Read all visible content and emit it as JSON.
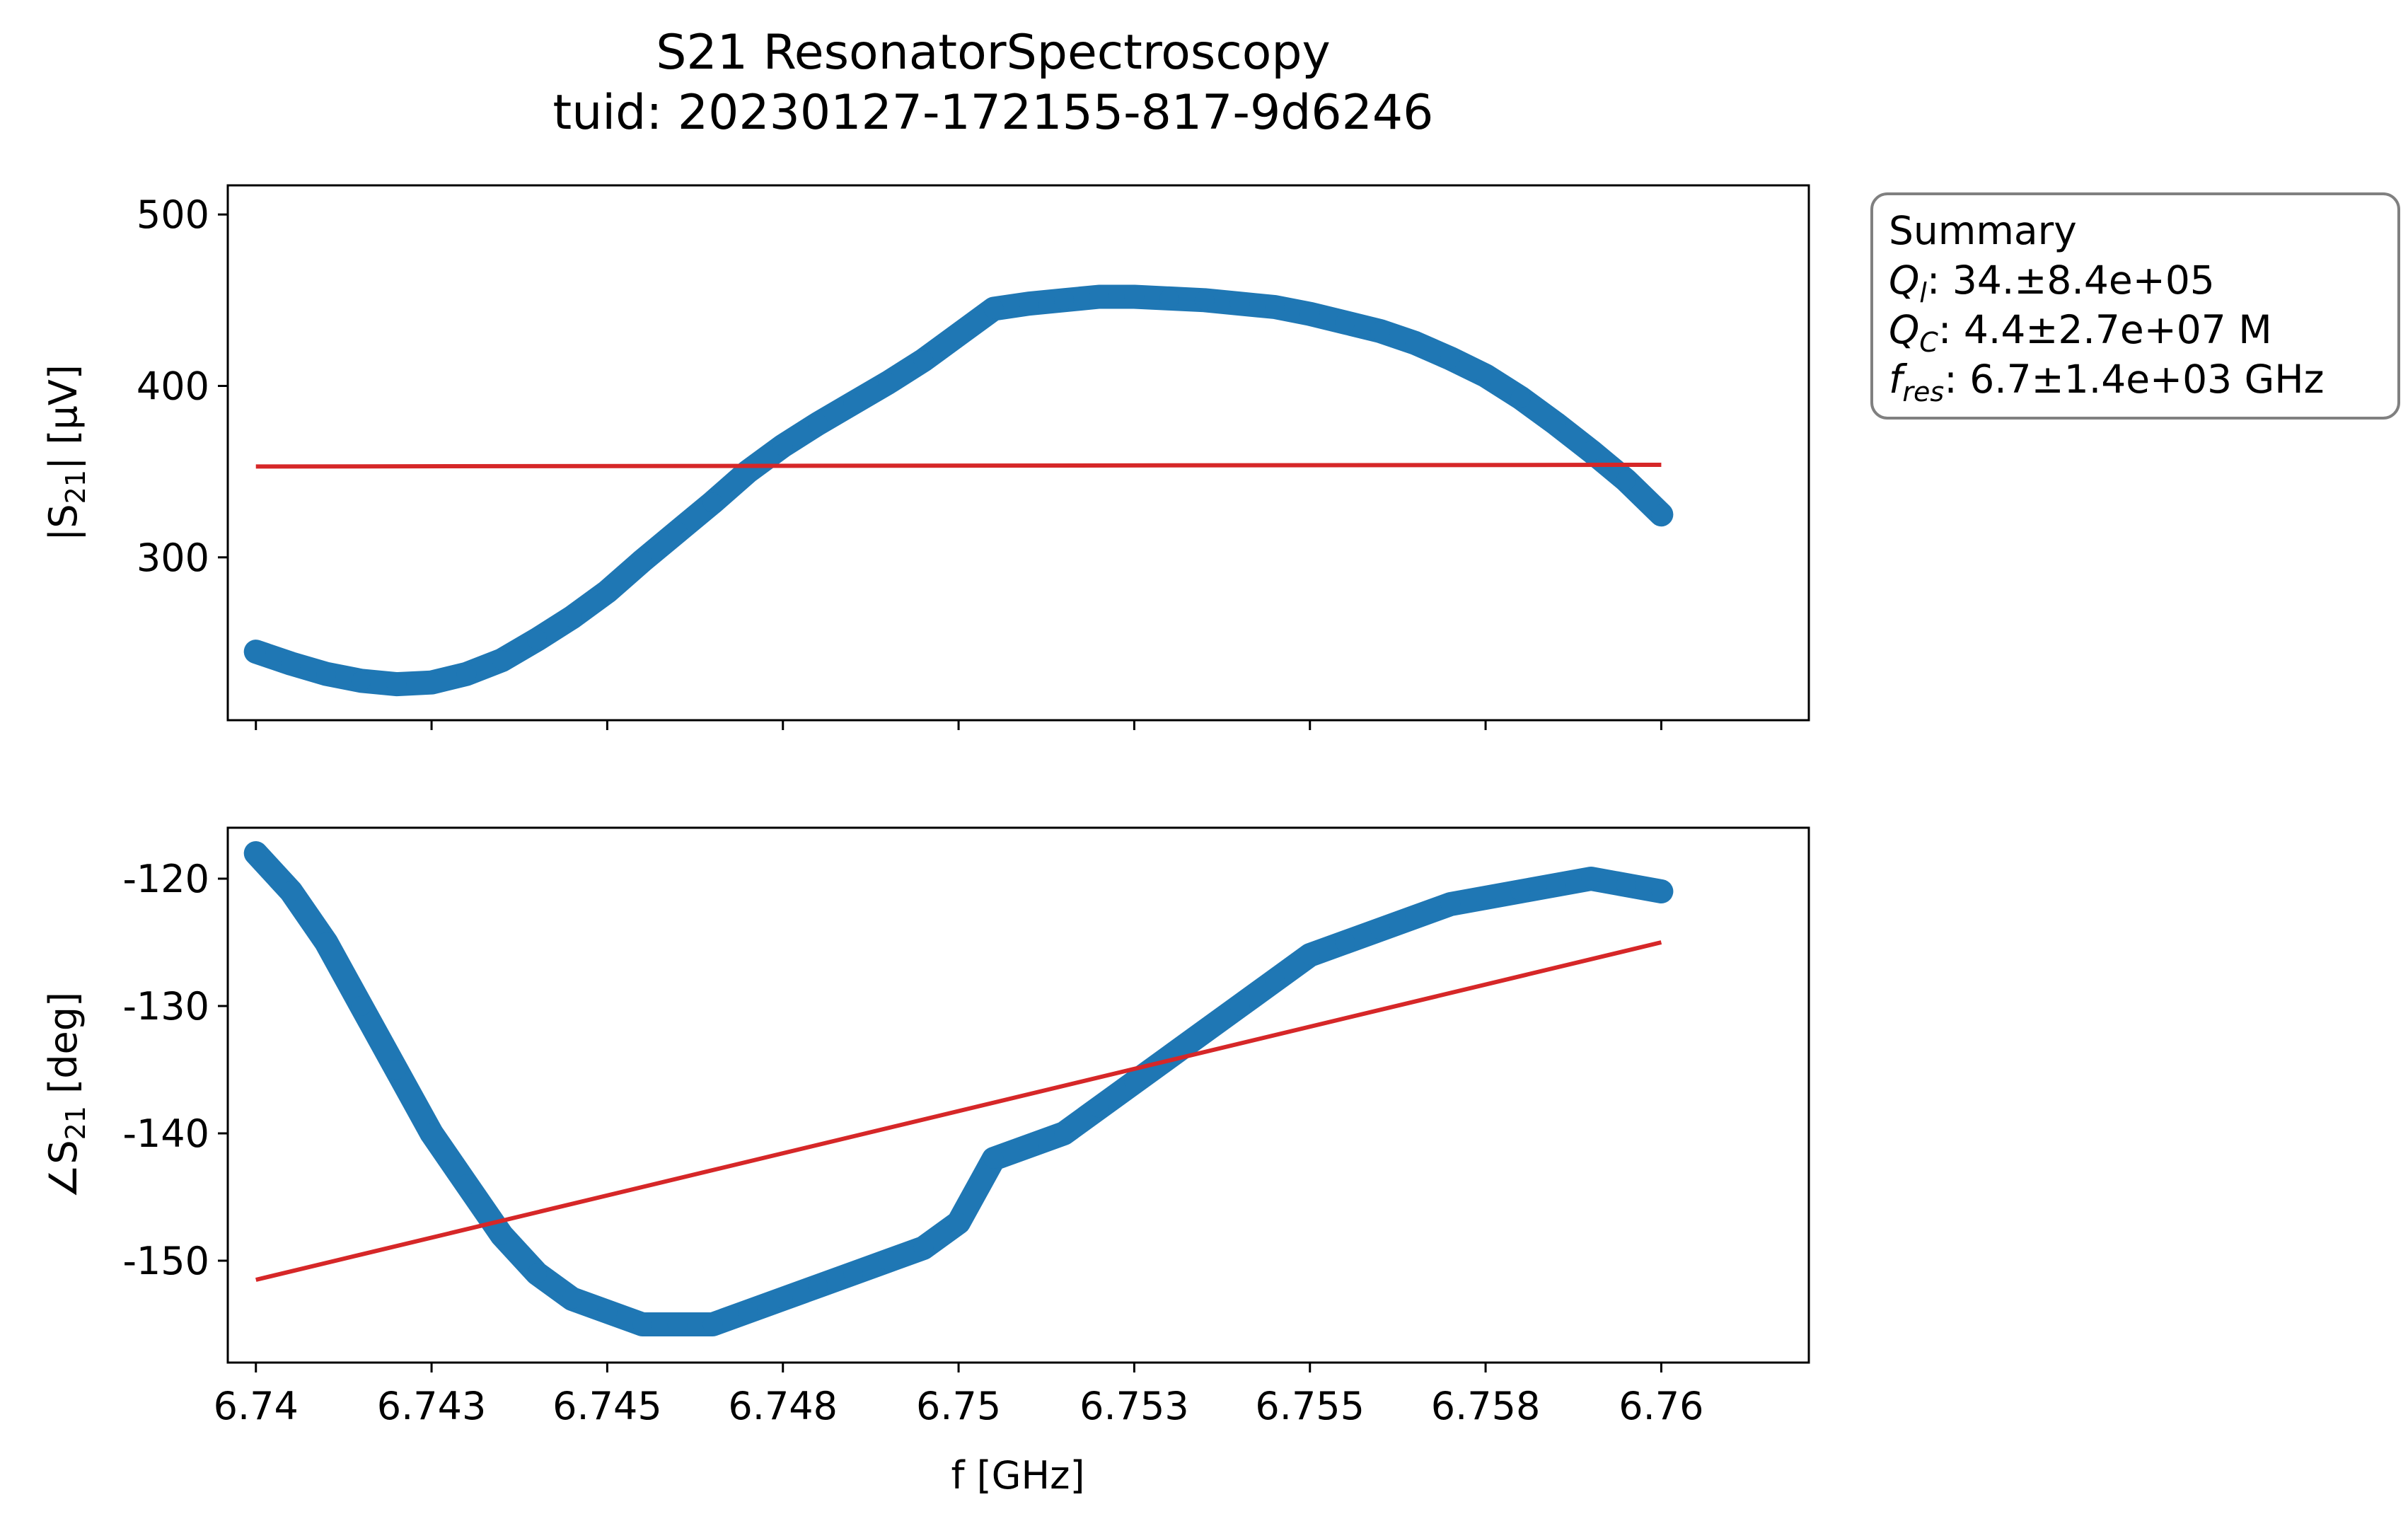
{
  "chart_data": [
    {
      "type": "scatter",
      "panel": "magnitude",
      "title": "S21 ResonatorSpectroscopy",
      "subtitle": "tuid: 20230127-172155-817-9d6246",
      "ylabel": "|S21| [µV]",
      "ylabel_main": "|S",
      "ylabel_sub": "21",
      "ylabel_tail": "| [µV]",
      "xlim": [
        6.7396,
        6.7621
      ],
      "ylim": [
        205,
        517
      ],
      "xticks": [
        6.74,
        6.7425,
        6.745,
        6.7475,
        6.75,
        6.7525,
        6.755,
        6.7575,
        6.76
      ],
      "yticks": [
        300,
        400,
        500
      ],
      "ytick_labels": [
        "300",
        "400",
        "500"
      ],
      "grid": false,
      "series": [
        {
          "kind": "data",
          "color": "#1f77b4",
          "x": [
            6.74,
            6.7405,
            6.741,
            6.7415,
            6.742,
            6.7425,
            6.743,
            6.7435,
            6.744,
            6.7445,
            6.745,
            6.7455,
            6.746,
            6.7465,
            6.747,
            6.7475,
            6.748,
            6.7485,
            6.749,
            6.7495,
            6.75,
            6.7505,
            6.751,
            6.7515,
            6.752,
            6.7525,
            6.753,
            6.7535,
            6.754,
            6.7545,
            6.755,
            6.7555,
            6.756,
            6.7565,
            6.757,
            6.7575,
            6.758,
            6.7585,
            6.759,
            6.7595,
            6.76
          ],
          "y": [
            245,
            238,
            232,
            228,
            226,
            227,
            232,
            240,
            252,
            265,
            280,
            298,
            315,
            332,
            350,
            365,
            378,
            390,
            402,
            415,
            430,
            445,
            448,
            450,
            452,
            452,
            451,
            450,
            448,
            446,
            442,
            437,
            432,
            425,
            416,
            406,
            393,
            378,
            362,
            345,
            325
          ]
        },
        {
          "kind": "fit",
          "color": "#d62728",
          "x": [
            6.74,
            6.76
          ],
          "y": [
            353,
            354
          ]
        }
      ]
    },
    {
      "type": "scatter",
      "panel": "phase",
      "xlabel": "f [GHz]",
      "ylabel": "∠S21 [deg]",
      "ylabel_main": "∠S",
      "ylabel_sub": "21",
      "ylabel_tail": " [deg]",
      "xlim": [
        6.7396,
        6.7621
      ],
      "ylim": [
        -158,
        -116
      ],
      "xticks": [
        6.74,
        6.7425,
        6.745,
        6.7475,
        6.75,
        6.7525,
        6.755,
        6.7575,
        6.76
      ],
      "xtick_labels": [
        "6.74",
        "6.743",
        "6.745",
        "6.748",
        "6.75",
        "6.753",
        "6.755",
        "6.758",
        "6.76"
      ],
      "yticks": [
        -150,
        -140,
        -130,
        -120
      ],
      "ytick_labels": [
        "-150",
        "-140",
        "-130",
        "-120"
      ],
      "grid": false,
      "series": [
        {
          "kind": "data",
          "color": "#1f77b4",
          "x": [
            6.74,
            6.7405,
            6.741,
            6.7415,
            6.742,
            6.7425,
            6.743,
            6.7435,
            6.744,
            6.7445,
            6.745,
            6.7455,
            6.746,
            6.7465,
            6.747,
            6.7475,
            6.748,
            6.7485,
            6.749,
            6.7495,
            6.75,
            6.7505,
            6.751,
            6.7515,
            6.752,
            6.7525,
            6.753,
            6.7535,
            6.754,
            6.7545,
            6.755,
            6.7555,
            6.756,
            6.7565,
            6.757,
            6.7575,
            6.758,
            6.7585,
            6.759,
            6.7595,
            6.76
          ],
          "y": [
            -118,
            -121,
            -125,
            -130,
            -135,
            -140,
            -144,
            -148,
            -151,
            -153,
            -154,
            -155,
            -155,
            -155,
            -154,
            -153,
            -152,
            -151,
            -150,
            -149,
            -147,
            -142,
            -141,
            -140,
            -138,
            -136,
            -134,
            -132,
            -130,
            -128,
            -126,
            -125,
            -124,
            -123,
            -122,
            -121.5,
            -121,
            -120.5,
            -120,
            -120.5,
            -121
          ]
        },
        {
          "kind": "fit",
          "color": "#d62728",
          "x": [
            6.74,
            6.76
          ],
          "y": [
            -151.5,
            -125
          ]
        }
      ]
    }
  ],
  "summary": {
    "title": "Summary",
    "lines": [
      {
        "sym": "Q",
        "sub": "l",
        "text": ": 34.±8.4e+05"
      },
      {
        "sym": "Q",
        "sub": "C",
        "text": ": 4.4±2.7e+07 M"
      },
      {
        "sym": "f",
        "sub": "res",
        "text": ": 6.7±1.4e+03 GHz"
      }
    ]
  }
}
